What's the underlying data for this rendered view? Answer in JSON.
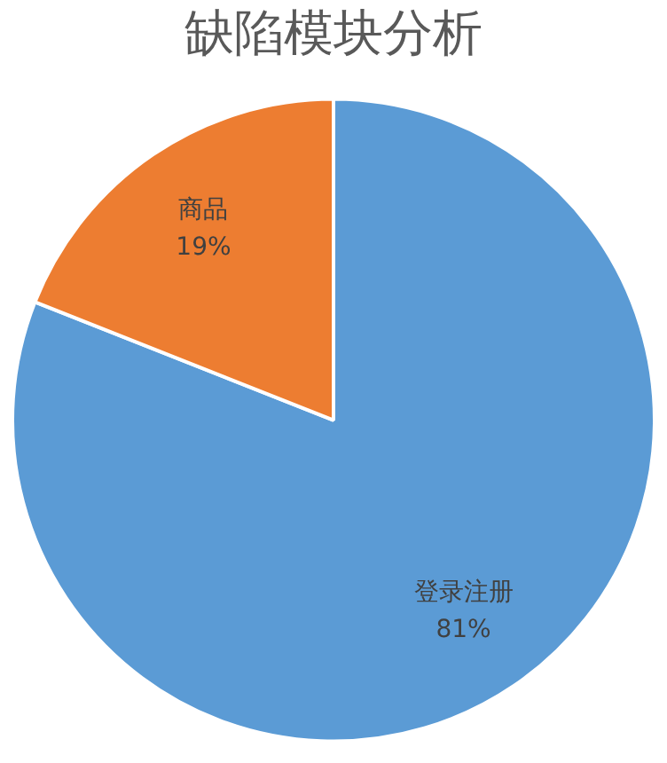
{
  "chart_data": {
    "type": "pie",
    "title": "缺陷模块分析",
    "categories": [
      "登录注册",
      "商品"
    ],
    "values": [
      81,
      19
    ],
    "colors": [
      "#5b9bd5",
      "#ed7d31"
    ],
    "value_labels": [
      "81%",
      "19%"
    ],
    "legend": false
  }
}
